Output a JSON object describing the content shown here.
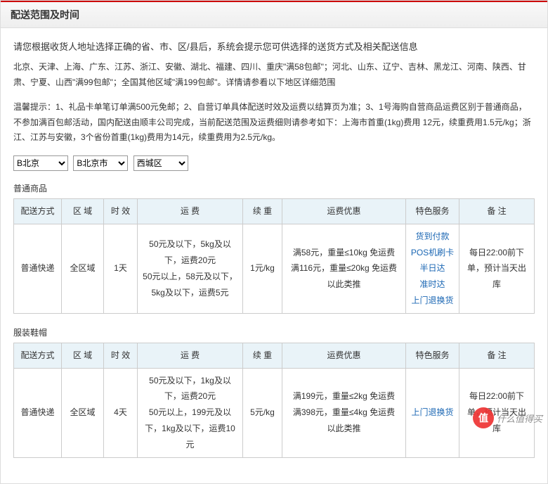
{
  "header": {
    "title": "配送范围及时间"
  },
  "intro": "请您根据收货人地址选择正确的省、市、区/县后，系统会提示您可供选择的送货方式及相关配送信息",
  "para1": "北京、天津、上海、广东、江苏、浙江、安徽、湖北、福建、四川、重庆\"满58包邮\"；河北、山东、辽宁、吉林、黑龙江、河南、陕西、甘肃、宁夏、山西\"满99包邮\"；全国其他区域\"满199包邮\"。详情请参看以下地区详细范围",
  "para2": "温馨提示：1、礼品卡单笔订单满500元免邮；2、自营订单具体配送时效及运费以结算页为准；3、1号海购自营商品运费区别于普通商品，不参加满百包邮活动，国内配送由顺丰公司完成，当前配送范围及运费细则请参考如下：上海市首重(1kg)费用 12元，续重费用1.5元/kg；浙江、江苏与安徽，3个省份首重(1kg)费用为14元，续重费用为2.5元/kg。",
  "selects": {
    "province": "B北京",
    "city": "B北京市",
    "district": "西城区"
  },
  "sections": {
    "s1": {
      "title": "普通商品"
    },
    "s2": {
      "title": "服装鞋帽"
    }
  },
  "headers": {
    "h1": "配送方式",
    "h2": "区 域",
    "h3": "时 效",
    "h4": "运 费",
    "h5": "续 重",
    "h6": "运费优惠",
    "h7": "特色服务",
    "h8": "备 注"
  },
  "t1": {
    "method": "普通快递",
    "region": "全区域",
    "time": "1天",
    "fee": "50元及以下，5kg及以下，运费20元\n50元以上，58元及以下，5kg及以下，运费5元",
    "cont": "1元/kg",
    "disc": "满58元，重量≤10kg 免运费\n满116元，重量≤20kg 免运费\n以此类推",
    "svc": "货到付款\nPOS机刷卡\n半日达\n准时达\n上门退换货",
    "note": "每日22:00前下单，预计当天出库"
  },
  "t2": {
    "method": "普通快递",
    "region": "全区域",
    "time": "4天",
    "fee": "50元及以下，1kg及以下，运费20元\n50元以上，199元及以下，1kg及以下，运费10元",
    "cont": "5元/kg",
    "disc": "满199元，重量≤2kg 免运费\n满398元，重量≤4kg 免运费\n以此类推",
    "svc": "上门退换货",
    "note": "每日22:00前下单，预计当天出库"
  },
  "watermark": {
    "icon": "值",
    "text": "什么值得买"
  }
}
